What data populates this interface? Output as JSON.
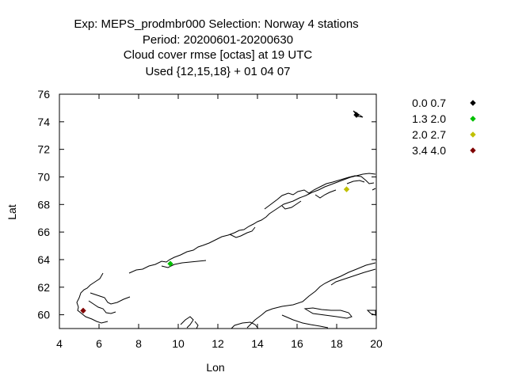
{
  "chart_data": {
    "type": "scatter",
    "title_lines": [
      "Exp: MEPS_prodmbr000   Selection: Norway      4 stations",
      "Period: 20200601-20200630",
      "Cloud cover rmse [octas] at  19 UTC",
      "Used {12,15,18} + 01 04 07"
    ],
    "xlabel": "Lon",
    "ylabel": "Lat",
    "xlim": [
      4,
      20
    ],
    "ylim": [
      59,
      76
    ],
    "xticks": [
      "4",
      "6",
      "8",
      "10",
      "12",
      "14",
      "16",
      "18",
      "20"
    ],
    "yticks": [
      "60",
      "62",
      "64",
      "66",
      "68",
      "70",
      "72",
      "74",
      "76"
    ],
    "legend": [
      {
        "label": "0.0 0.7",
        "color": "#000000"
      },
      {
        "label": "1.3 2.0",
        "color": "#00c000"
      },
      {
        "label": "2.0 2.7",
        "color": "#c0c000"
      },
      {
        "label": "3.4 4.0",
        "color": "#800000"
      }
    ],
    "points": [
      {
        "lon": 19.0,
        "lat": 74.5,
        "class": 0
      },
      {
        "lon": 9.6,
        "lat": 63.7,
        "class": 1
      },
      {
        "lon": 18.5,
        "lat": 69.1,
        "class": 2
      },
      {
        "lon": 5.2,
        "lat": 60.3,
        "class": 3
      }
    ]
  }
}
